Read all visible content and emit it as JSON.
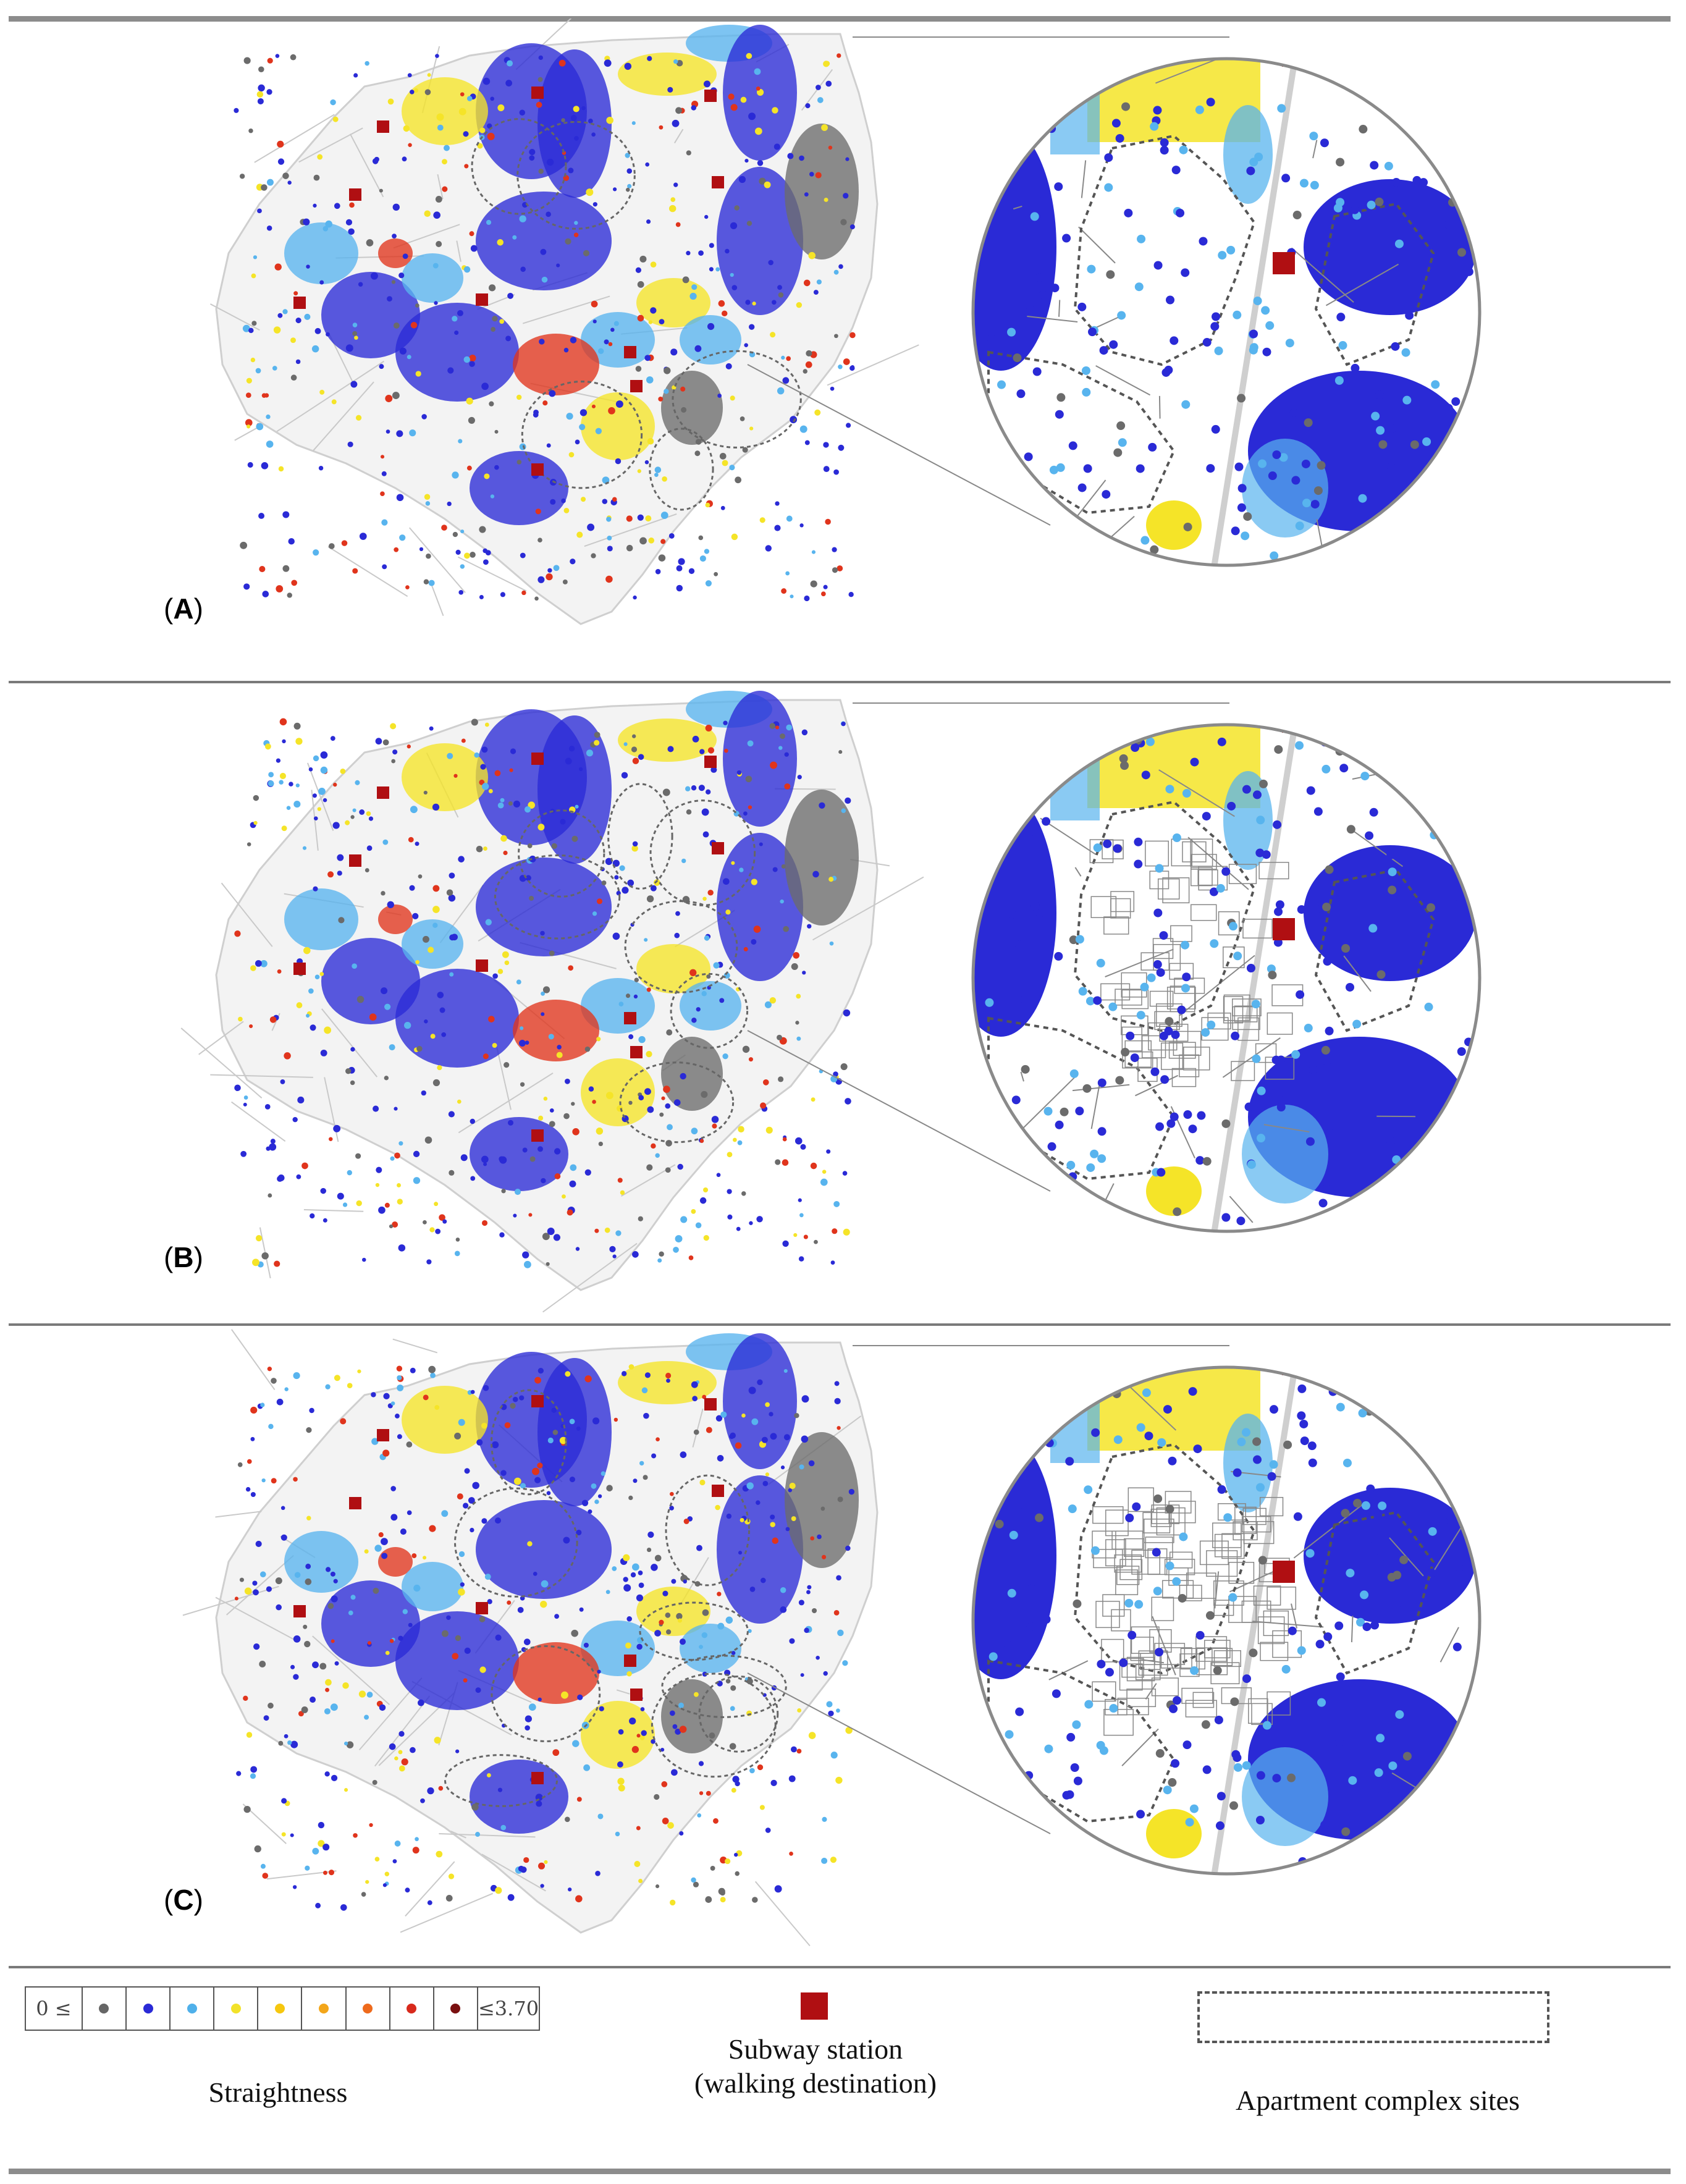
{
  "panels": [
    {
      "id": "A",
      "label": "A"
    },
    {
      "id": "B",
      "label": "B"
    },
    {
      "id": "C",
      "label": "C"
    }
  ],
  "legend": {
    "straightness": {
      "min_label": "0 ≤",
      "max_label": "≤3.70",
      "title": "Straightness",
      "colors": [
        "#666666",
        "#2a2ad6",
        "#4fb0ea",
        "#f2e22a",
        "#f6c70f",
        "#f3a61a",
        "#ee6a1c",
        "#d82a1c",
        "#7a1010"
      ]
    },
    "subway": {
      "title_line1": "Subway station",
      "title_line2": "(walking destination)",
      "color": "#b00f12"
    },
    "apartment": {
      "title": "Apartment complex sites"
    }
  },
  "colors": {
    "gray_points": "#6b6b6b",
    "dark_blue": "#2a2ad6",
    "light_blue": "#58b4ee",
    "yellow": "#f5e428",
    "orange": "#f2a11a",
    "red": "#e0341c",
    "background_network": "#d9d9d9"
  }
}
